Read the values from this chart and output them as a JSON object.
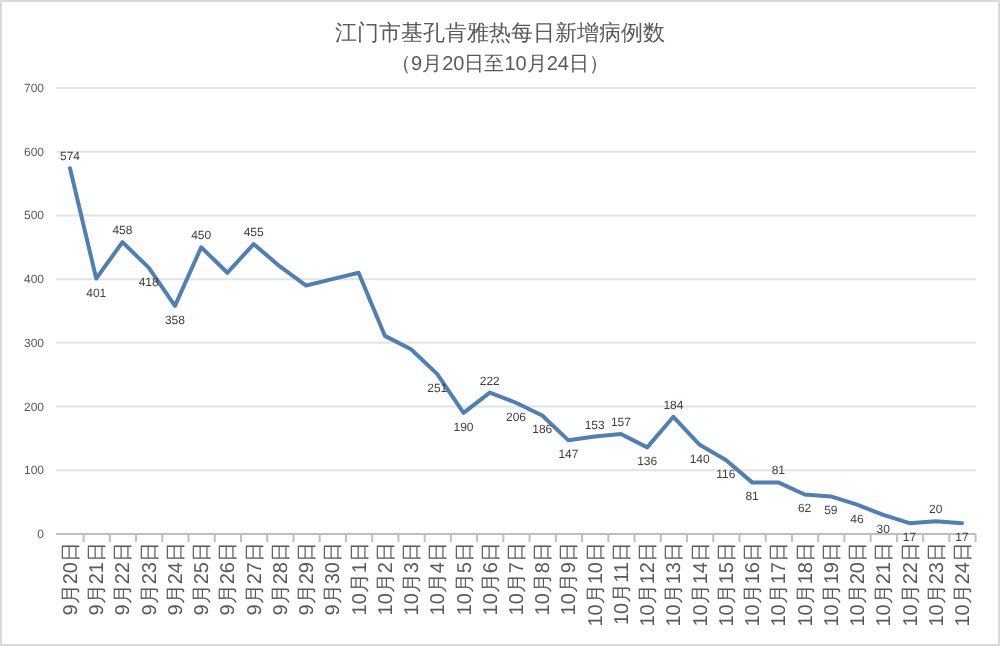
{
  "chart_data": {
    "type": "line",
    "title": "江门市基孔肯雅热每日新增病例数",
    "subtitle": "（9月20日至10月24日）",
    "categories": [
      "9月20日",
      "9月21日",
      "9月22日",
      "9月23日",
      "9月24日",
      "9月25日",
      "9月26日",
      "9月27日",
      "9月28日",
      "9月29日",
      "9月30日",
      "10月1日",
      "10月2日",
      "10月3日",
      "10月4日",
      "10月5日",
      "10月6日",
      "10月7日",
      "10月8日",
      "10月9日",
      "10月10日",
      "10月11日",
      "10月12日",
      "10月13日",
      "10月14日",
      "10月15日",
      "10月16日",
      "10月17日",
      "10月18日",
      "10月19日",
      "10月20日",
      "10月21日",
      "10月22日",
      "10月23日",
      "10月24日"
    ],
    "series": [
      {
        "color": "#4f7fb5",
        "values": [
          574,
          401,
          458,
          418,
          358,
          450,
          410,
          455,
          420,
          390,
          400,
          410,
          311,
          290,
          251,
          190,
          222,
          206,
          186,
          147,
          153,
          157,
          136,
          184,
          140,
          116,
          81,
          81,
          62,
          59,
          46,
          30,
          17,
          20,
          17
        ],
        "value_labels": [
          "574",
          "401",
          "458",
          "418",
          "358",
          "450",
          null,
          "455",
          null,
          null,
          null,
          null,
          null,
          null,
          "251",
          "190",
          "222",
          "206",
          "186",
          "147",
          "153",
          "157",
          "136",
          "184",
          "140",
          "116",
          "81",
          "81",
          "62",
          "59",
          "46",
          "30",
          "17",
          "20",
          "17"
        ]
      }
    ],
    "ylim": [
      0,
      700
    ],
    "yticks": [
      0,
      100,
      200,
      300,
      400,
      500,
      600,
      700
    ],
    "grid": "y",
    "marker": "none",
    "line_style": "solid"
  }
}
